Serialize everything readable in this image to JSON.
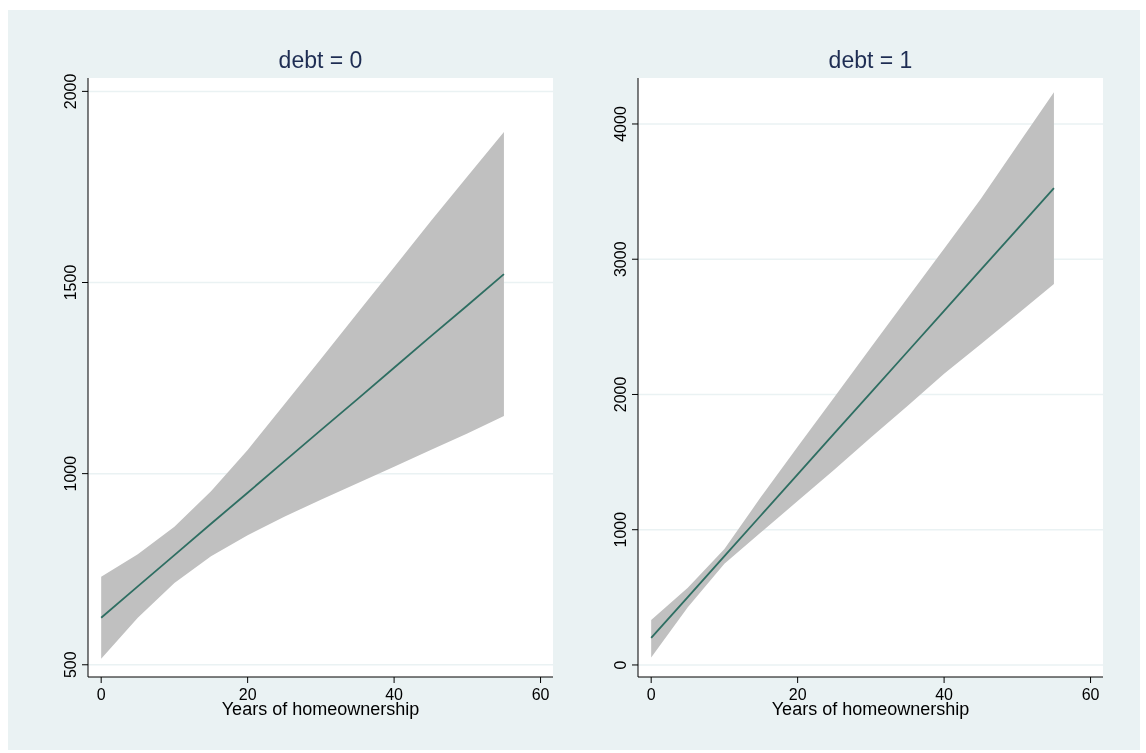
{
  "chart_data": [
    {
      "type": "line",
      "title": "debt = 0",
      "xlabel": "Years of homeownership",
      "x": [
        0,
        5,
        10,
        15,
        20,
        25,
        30,
        35,
        40,
        45,
        50,
        55
      ],
      "xlim": [
        -1.8,
        61.7
      ],
      "xticks": [
        0,
        20,
        40,
        60
      ],
      "ylim": [
        468,
        2035
      ],
      "yticks": [
        500,
        1000,
        1500,
        2000
      ],
      "grid": "y",
      "marker": "none",
      "line_style": "solid",
      "series": [
        {
          "color": "#2e6e62",
          "values": [
            623,
            705,
            787,
            869,
            950,
            1032,
            1114,
            1195,
            1277,
            1359,
            1440,
            1522
          ],
          "lower": [
            516,
            623,
            714,
            784,
            839,
            887,
            932,
            975,
            1018,
            1062,
            1105,
            1151
          ],
          "upper": [
            730,
            789,
            861,
            954,
            1062,
            1181,
            1300,
            1420,
            1540,
            1660,
            1777,
            1894
          ]
        }
      ]
    },
    {
      "type": "line",
      "title": "debt = 1",
      "xlabel": "Years of homeownership",
      "x": [
        0,
        5,
        10,
        15,
        20,
        25,
        30,
        35,
        40,
        45,
        50,
        55
      ],
      "xlim": [
        -1.8,
        61.7
      ],
      "xticks": [
        0,
        20,
        40,
        60
      ],
      "ylim": [
        -89,
        4340
      ],
      "yticks": [
        0,
        1000,
        2000,
        3000,
        4000
      ],
      "grid": "y",
      "marker": "none",
      "line_style": "solid",
      "series": [
        {
          "color": "#2e6e62",
          "values": [
            200,
            502,
            805,
            1107,
            1409,
            1712,
            2014,
            2316,
            2618,
            2921,
            3223,
            3525
          ],
          "lower": [
            56,
            426,
            749,
            981,
            1212,
            1443,
            1681,
            1915,
            2153,
            2372,
            2594,
            2816
          ],
          "upper": [
            333,
            571,
            857,
            1243,
            1613,
            1980,
            2347,
            2714,
            3078,
            3445,
            3840,
            4234
          ]
        }
      ]
    }
  ]
}
